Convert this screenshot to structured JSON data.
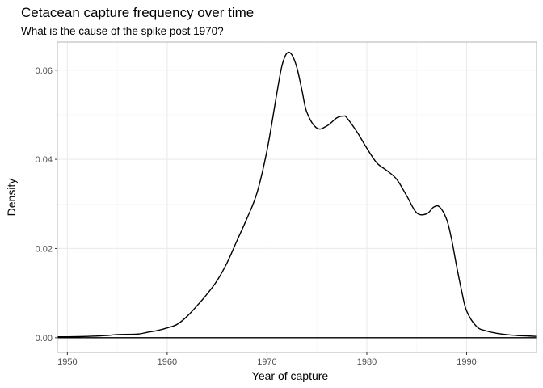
{
  "chart_data": {
    "type": "area",
    "title": "Cetacean capture frequency over time",
    "subtitle": "What is the cause of the spike post 1970?",
    "xlabel": "Year of capture",
    "ylabel": "Density",
    "xlim": [
      1949,
      1997
    ],
    "ylim": [
      0,
      0.065
    ],
    "x_ticks": [
      1950,
      1960,
      1970,
      1980,
      1990
    ],
    "x_tick_labels": [
      "1950",
      "1960",
      "1970",
      "1980",
      "1990"
    ],
    "y_ticks": [
      0,
      0.02,
      0.04,
      0.06
    ],
    "y_tick_labels": [
      "0.00",
      "0.02",
      "0.04",
      "0.06"
    ],
    "grid": true,
    "legend": "none",
    "series": [
      {
        "x": [
          1949,
          1950,
          1952,
          1954,
          1955,
          1957,
          1958,
          1959,
          1960,
          1961,
          1962,
          1963,
          1964,
          1965,
          1966,
          1967,
          1968,
          1969,
          1970,
          1971,
          1971.5,
          1972,
          1972.5,
          1973,
          1973.5,
          1974,
          1975,
          1976,
          1977,
          1977.7,
          1978,
          1979,
          1980,
          1981,
          1982,
          1983,
          1984,
          1985,
          1986,
          1986.7,
          1987.3,
          1988,
          1988.5,
          1989,
          1989.5,
          1990,
          1991,
          1992,
          1993,
          1994,
          1995,
          1996,
          1997
        ],
        "y": [
          0.0002,
          0.0002,
          0.0003,
          0.0005,
          0.0007,
          0.0008,
          0.0012,
          0.0016,
          0.0022,
          0.003,
          0.0048,
          0.0072,
          0.0098,
          0.0128,
          0.0168,
          0.0218,
          0.0268,
          0.0325,
          0.042,
          0.055,
          0.061,
          0.0638,
          0.0634,
          0.0605,
          0.0555,
          0.0505,
          0.047,
          0.0475,
          0.0493,
          0.0497,
          0.0493,
          0.0462,
          0.0425,
          0.0392,
          0.0375,
          0.0355,
          0.0318,
          0.028,
          0.0278,
          0.0293,
          0.0293,
          0.0265,
          0.022,
          0.016,
          0.0105,
          0.006,
          0.0025,
          0.0015,
          0.001,
          0.0007,
          0.0005,
          0.0004,
          0.0003
        ]
      }
    ],
    "colors": {
      "line": "#000000",
      "grid_major": "#ebebeb",
      "grid_minor": "#f5f5f5",
      "panel_border": "#b3b3b3"
    }
  }
}
